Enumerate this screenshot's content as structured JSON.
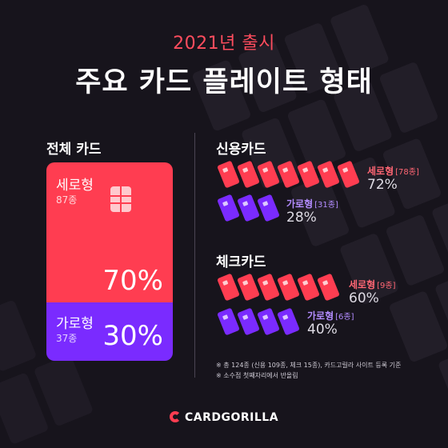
{
  "header": {
    "subtitle": "2021년 출시",
    "title": "주요 카드 플레이트 형태"
  },
  "total": {
    "label": "전체 카드",
    "vertical": {
      "name": "세로형",
      "count": "87종",
      "percent": "70%",
      "share": 0.7
    },
    "horizontal": {
      "name": "가로형",
      "count": "37종",
      "percent": "30%",
      "share": 0.3
    }
  },
  "credit": {
    "label": "신용카드",
    "vertical": {
      "name": "세로형",
      "count": "[78종]",
      "percent": "72%",
      "icons": 7
    },
    "horizontal": {
      "name": "가로형",
      "count": "[31종]",
      "percent": "28%",
      "icons": 3
    }
  },
  "check": {
    "label": "체크카드",
    "vertical": {
      "name": "세로형",
      "count": "[9종]",
      "percent": "60%",
      "icons": 6
    },
    "horizontal": {
      "name": "가로형",
      "count": "[6종]",
      "percent": "40%",
      "icons": 4
    }
  },
  "notes": [
    "※ 총 124종 (신용 109종, 체크 15종), 카드고릴라 사이트 등록 기준",
    "※ 소수점 첫째자리에서 반올림"
  ],
  "brand": {
    "name": "CARDGORILLA"
  },
  "colors": {
    "accent_red": "#ff3d51",
    "accent_purple": "#7a2bff",
    "background": "#17141c"
  }
}
